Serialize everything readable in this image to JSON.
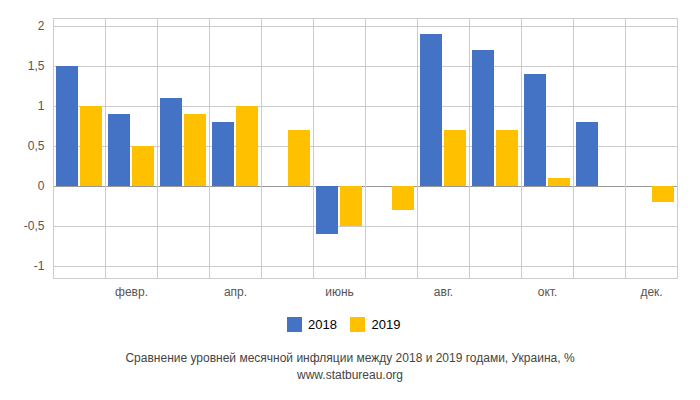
{
  "chart_data": {
    "type": "bar",
    "title": "Сравнение уровней месячной инфляции между 2018 и 2019 годами, Украина, %",
    "subtitle": "www.statbureau.org",
    "categories": [
      null,
      "февр.",
      null,
      "апр.",
      null,
      "июнь",
      null,
      "авг.",
      null,
      "окт.",
      null,
      "дек."
    ],
    "series": [
      {
        "name": "2018",
        "color": "#4472c4",
        "values": [
          1.5,
          0.9,
          1.1,
          0.8,
          0.0,
          -0.6,
          0.0,
          1.9,
          1.7,
          1.4,
          0.8,
          0.0
        ]
      },
      {
        "name": "2019",
        "color": "#ffc000",
        "values": [
          1.0,
          0.5,
          0.9,
          1.0,
          0.7,
          -0.5,
          -0.3,
          0.7,
          0.7,
          0.1,
          0.0,
          -0.2
        ]
      }
    ],
    "ylim": [
      -1.15,
      2.1
    ],
    "yticks": [
      -1,
      {
        "value": -0.5,
        "label": "-0,5"
      },
      0,
      {
        "value": 0.5,
        "label": "0,5"
      },
      1,
      {
        "value": 1.5,
        "label": "1,5"
      },
      2
    ],
    "grid": true,
    "legend": "bottom"
  }
}
